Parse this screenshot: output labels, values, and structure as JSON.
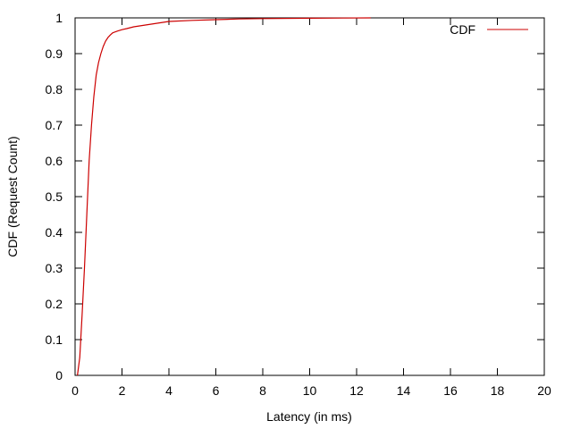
{
  "chart_data": {
    "type": "line",
    "xlabel": "Latency (in ms)",
    "ylabel": "CDF (Request Count)",
    "xlim": [
      0,
      20
    ],
    "ylim": [
      0,
      1
    ],
    "xticks": [
      "0",
      "2",
      "4",
      "6",
      "8",
      "10",
      "12",
      "14",
      "16",
      "18",
      "20"
    ],
    "yticks": [
      "0",
      "0.1",
      "0.2",
      "0.3",
      "0.4",
      "0.5",
      "0.6",
      "0.7",
      "0.8",
      "0.9",
      "1"
    ],
    "grid": false,
    "legend_position": "top-right",
    "series": [
      {
        "name": "CDF",
        "color": "#cc0000",
        "x": [
          0.1,
          0.2,
          0.3,
          0.4,
          0.5,
          0.6,
          0.7,
          0.8,
          0.9,
          1.0,
          1.1,
          1.2,
          1.3,
          1.4,
          1.5,
          1.6,
          1.8,
          2.0,
          2.2,
          2.5,
          3.0,
          3.5,
          4.0,
          5.0,
          6.0,
          7.0,
          8.0,
          10.0,
          12.6
        ],
        "y": [
          0.0,
          0.05,
          0.17,
          0.3,
          0.45,
          0.6,
          0.7,
          0.78,
          0.84,
          0.875,
          0.9,
          0.92,
          0.935,
          0.945,
          0.952,
          0.958,
          0.963,
          0.967,
          0.97,
          0.975,
          0.98,
          0.985,
          0.99,
          0.993,
          0.995,
          0.997,
          0.998,
          0.999,
          1.0
        ]
      }
    ]
  }
}
